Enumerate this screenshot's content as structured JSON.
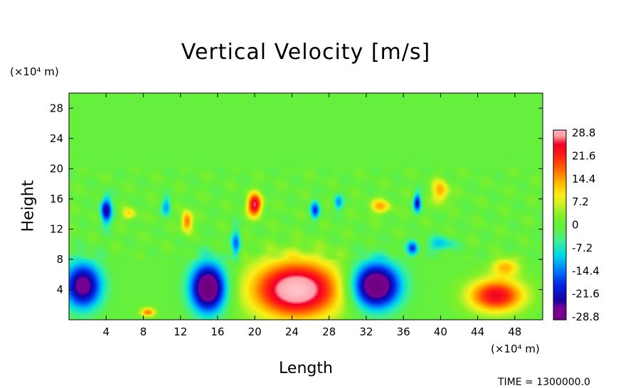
{
  "chart_data": {
    "type": "heatmap",
    "title": "Vertical Velocity [m/s]",
    "xlabel": "Length",
    "ylabel": "Height",
    "x_unit": "(×10⁴ m)",
    "y_unit": "(×10⁴ m)",
    "xlim": [
      0,
      51
    ],
    "ylim": [
      0,
      30
    ],
    "x_ticks": [
      4,
      8,
      12,
      16,
      20,
      24,
      28,
      32,
      36,
      40,
      44,
      48
    ],
    "y_ticks": [
      4,
      8,
      12,
      16,
      20,
      24,
      28
    ],
    "colorbar": {
      "min": -28.8,
      "max": 28.8,
      "labels": [
        "28.8",
        "21.6",
        "14.4",
        "7.2",
        "0",
        "-7.2",
        "-14.4",
        "-21.6",
        "-28.8"
      ]
    },
    "features": [
      {
        "kind": "updraft",
        "x": 24.5,
        "y": 4.0,
        "sx": 4.8,
        "sy": 3.8,
        "value": 32
      },
      {
        "kind": "updraft",
        "x": 46.0,
        "y": 3.2,
        "sx": 3.0,
        "sy": 2.2,
        "value": 24
      },
      {
        "kind": "updraft",
        "x": 47.0,
        "y": 7.0,
        "sx": 1.5,
        "sy": 1.2,
        "value": 12
      },
      {
        "kind": "updraft",
        "x": 20.0,
        "y": 15.2,
        "sx": 0.8,
        "sy": 1.5,
        "value": 26
      },
      {
        "kind": "updraft",
        "x": 12.7,
        "y": 13.0,
        "sx": 0.6,
        "sy": 1.4,
        "value": 18
      },
      {
        "kind": "updraft",
        "x": 40.0,
        "y": 17.0,
        "sx": 0.9,
        "sy": 1.6,
        "value": 14
      },
      {
        "kind": "updraft",
        "x": 33.5,
        "y": 15.0,
        "sx": 1.2,
        "sy": 1.0,
        "value": 12
      },
      {
        "kind": "updraft",
        "x": 8.5,
        "y": 1.0,
        "sx": 0.8,
        "sy": 0.6,
        "value": 16
      },
      {
        "kind": "updraft",
        "x": 6.5,
        "y": 14.0,
        "sx": 0.8,
        "sy": 0.8,
        "value": 10
      },
      {
        "kind": "downdraft",
        "x": 33.0,
        "y": 4.5,
        "sx": 2.6,
        "sy": 3.0,
        "value": -34
      },
      {
        "kind": "downdraft",
        "x": 15.0,
        "y": 4.2,
        "sx": 1.9,
        "sy": 3.2,
        "value": -34
      },
      {
        "kind": "downdraft",
        "x": 1.5,
        "y": 4.5,
        "sx": 2.0,
        "sy": 3.0,
        "value": -28
      },
      {
        "kind": "downdraft",
        "x": 4.0,
        "y": 14.5,
        "sx": 0.6,
        "sy": 1.8,
        "value": -22
      },
      {
        "kind": "downdraft",
        "x": 37.5,
        "y": 15.5,
        "sx": 0.4,
        "sy": 1.2,
        "value": -20
      },
      {
        "kind": "downdraft",
        "x": 18.0,
        "y": 10.0,
        "sx": 0.5,
        "sy": 2.0,
        "value": -14
      },
      {
        "kind": "downdraft",
        "x": 37.0,
        "y": 9.5,
        "sx": 0.6,
        "sy": 1.0,
        "value": -16
      },
      {
        "kind": "downdraft",
        "x": 26.5,
        "y": 14.5,
        "sx": 0.5,
        "sy": 1.2,
        "value": -16
      },
      {
        "kind": "downdraft",
        "x": 29.0,
        "y": 15.5,
        "sx": 0.5,
        "sy": 1.0,
        "value": -12
      },
      {
        "kind": "downdraft",
        "x": 10.5,
        "y": 15.0,
        "sx": 0.5,
        "sy": 1.2,
        "value": -12
      },
      {
        "kind": "downdraft",
        "x": 40.0,
        "y": 10.0,
        "sx": 1.5,
        "sy": 1.0,
        "value": -10
      }
    ]
  },
  "footer": {
    "time": "TIME = 1300000.0"
  }
}
